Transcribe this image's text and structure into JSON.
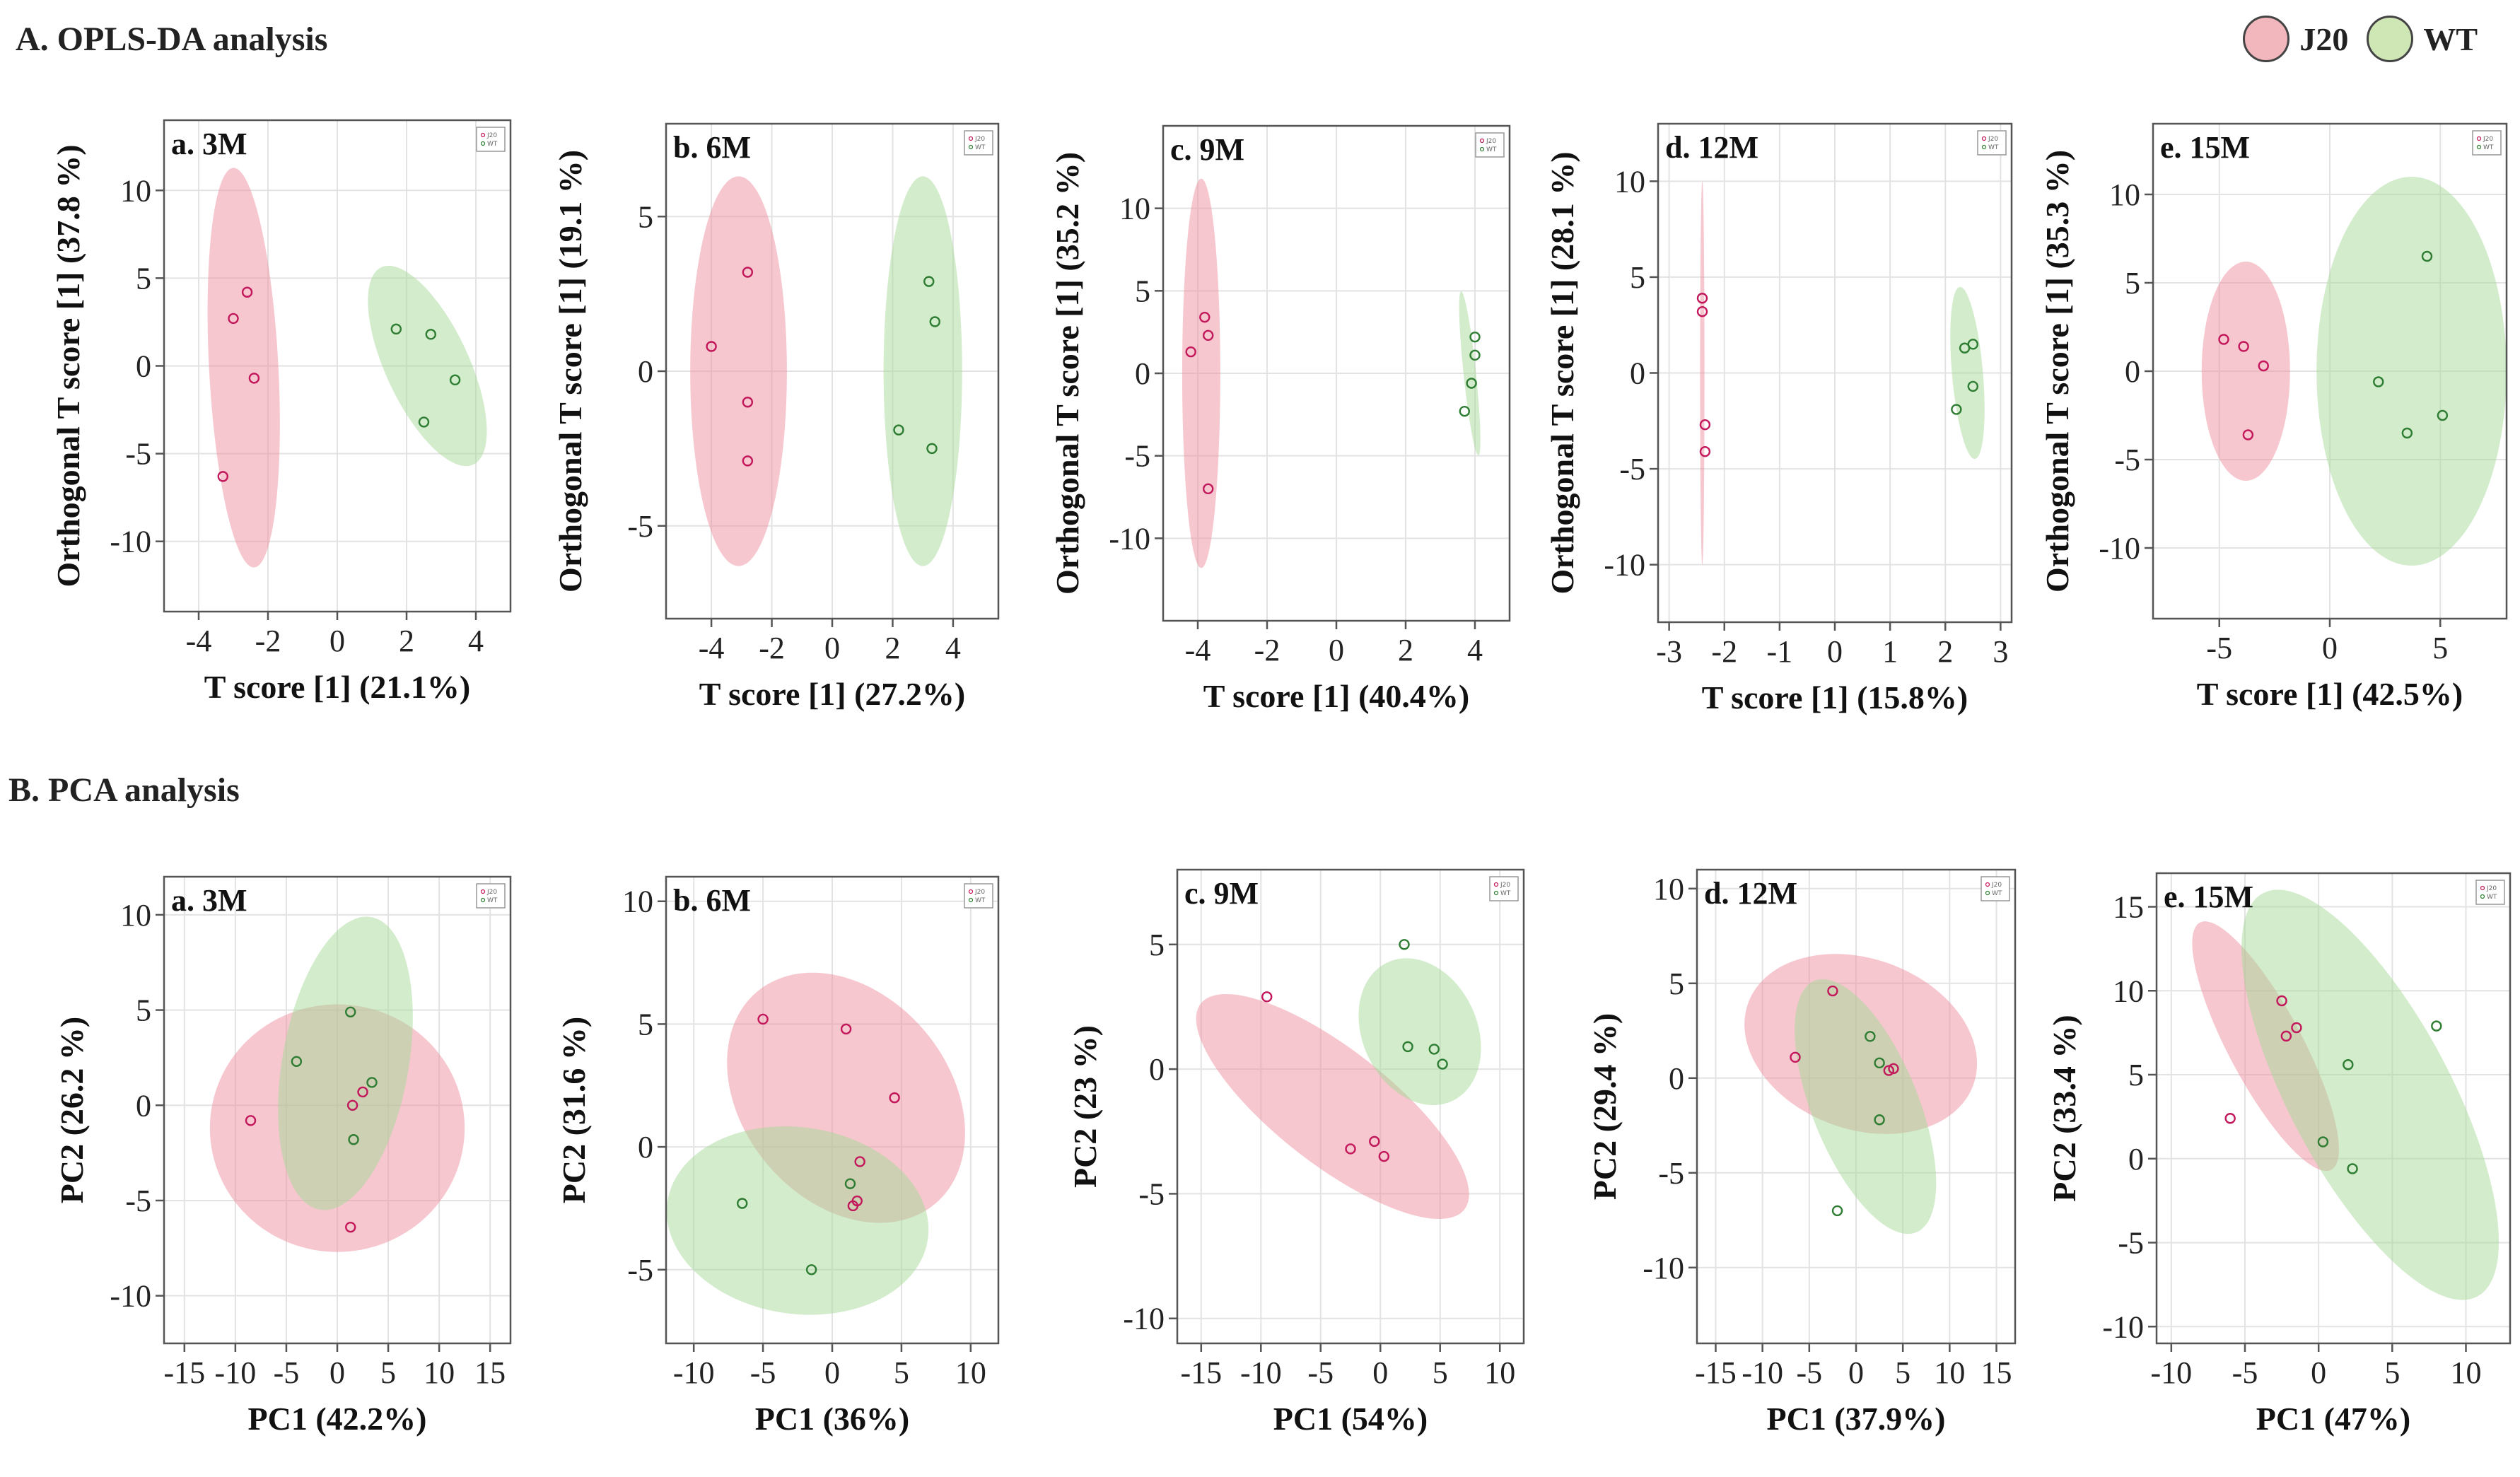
{
  "sections": {
    "a_title": "A. OPLS-DA analysis",
    "b_title": "B. PCA analysis"
  },
  "legend": {
    "items": [
      {
        "label": "J20",
        "color": "#f2b6bd"
      },
      {
        "label": "WT",
        "color": "#cfe6b5"
      }
    ]
  },
  "colors": {
    "j20_fill": "#f08fa0",
    "wt_fill": "#a5d99a",
    "j20_dot": "#c2185b",
    "wt_dot": "#2e7d32",
    "axis": "#555555",
    "grid": "#e3e3e3"
  },
  "inset_legend": [
    "J20",
    "WT"
  ],
  "chart_data": [
    {
      "type": "scatter",
      "row": "A",
      "title": "a. 3M",
      "xlabel": "T score [1] (21.1%)",
      "ylabel": "Orthogonal T score [1] (37.8 %)",
      "xlim": [
        -5,
        5
      ],
      "ylim": [
        -14,
        14
      ],
      "xticks": [
        -4,
        -2,
        0,
        2,
        4
      ],
      "yticks": [
        10,
        5,
        0,
        -5,
        -10
      ],
      "series": [
        {
          "name": "J20",
          "x": [
            -2.6,
            -3.0,
            -2.4,
            -3.3
          ],
          "y": [
            4.2,
            2.7,
            -0.7,
            -6.3
          ],
          "ellipse": {
            "cx": -2.7,
            "cy": -0.1,
            "rx": 1.0,
            "ry": 11.4,
            "angle": 3
          }
        },
        {
          "name": "WT",
          "x": [
            1.7,
            2.7,
            3.4,
            2.5
          ],
          "y": [
            2.1,
            1.8,
            -0.8,
            -3.2
          ],
          "ellipse": {
            "cx": 2.6,
            "cy": 0.0,
            "rx": 1.2,
            "ry": 6.2,
            "angle": 25
          }
        }
      ]
    },
    {
      "type": "scatter",
      "row": "A",
      "title": "b. 6M",
      "xlabel": "T score [1] (27.2%)",
      "ylabel": "Orthogonal T score [1] (19.1 %)",
      "xlim": [
        -5.5,
        5.5
      ],
      "ylim": [
        -8,
        8
      ],
      "xticks": [
        -4,
        -2,
        0,
        2,
        4
      ],
      "yticks": [
        5,
        0,
        -5
      ],
      "series": [
        {
          "name": "J20",
          "x": [
            -4.0,
            -2.8,
            -2.8,
            -2.8
          ],
          "y": [
            0.8,
            3.2,
            -1.0,
            -2.9
          ],
          "ellipse": {
            "cx": -3.1,
            "cy": 0.0,
            "rx": 1.6,
            "ry": 6.3,
            "angle": 0
          }
        },
        {
          "name": "WT",
          "x": [
            3.2,
            3.4,
            2.2,
            3.3
          ],
          "y": [
            2.9,
            1.6,
            -1.9,
            -2.5
          ],
          "ellipse": {
            "cx": 3.0,
            "cy": 0.0,
            "rx": 1.3,
            "ry": 6.3,
            "angle": 0
          }
        }
      ]
    },
    {
      "type": "scatter",
      "row": "A",
      "title": "c. 9M",
      "xlabel": "T score [1] (40.4%)",
      "ylabel": "Orthogonal T score [1] (35.2 %)",
      "xlim": [
        -5,
        5
      ],
      "ylim": [
        -15,
        15
      ],
      "xticks": [
        -4,
        -2,
        0,
        2,
        4
      ],
      "yticks": [
        10,
        5,
        0,
        -5,
        -10
      ],
      "series": [
        {
          "name": "J20",
          "x": [
            -3.8,
            -3.7,
            -4.2,
            -3.7
          ],
          "y": [
            3.4,
            2.3,
            1.3,
            -7.0
          ],
          "ellipse": {
            "cx": -3.9,
            "cy": 0.0,
            "rx": 0.55,
            "ry": 11.8,
            "angle": 0
          }
        },
        {
          "name": "WT",
          "x": [
            4.0,
            4.0,
            3.9,
            3.7
          ],
          "y": [
            2.2,
            1.1,
            -0.6,
            -2.3
          ],
          "ellipse": {
            "cx": 3.85,
            "cy": 0.0,
            "rx": 0.18,
            "ry": 5.0,
            "angle": 6
          }
        }
      ]
    },
    {
      "type": "scatter",
      "row": "A",
      "title": "d. 12M",
      "xlabel": "T score [1] (15.8%)",
      "ylabel": "Orthogonal T score [1] (28.1 %)",
      "xlim": [
        -3.2,
        3.2
      ],
      "ylim": [
        -13,
        13
      ],
      "xticks": [
        -3,
        -2,
        -1,
        0,
        1,
        2,
        3
      ],
      "yticks": [
        10,
        5,
        0,
        -5,
        -10
      ],
      "series": [
        {
          "name": "J20",
          "x": [
            -2.4,
            -2.4,
            -2.35,
            -2.35
          ],
          "y": [
            3.9,
            3.2,
            -2.7,
            -4.1
          ],
          "ellipse": {
            "cx": -2.4,
            "cy": 0.0,
            "rx": 0.04,
            "ry": 10.0,
            "angle": 0
          }
        },
        {
          "name": "WT",
          "x": [
            2.5,
            2.35,
            2.5,
            2.2
          ],
          "y": [
            1.5,
            1.3,
            -0.7,
            -1.9
          ],
          "ellipse": {
            "cx": 2.4,
            "cy": 0.0,
            "rx": 0.28,
            "ry": 4.5,
            "angle": 5
          }
        }
      ]
    },
    {
      "type": "scatter",
      "row": "A",
      "title": "e. 15M",
      "xlabel": "T score [1] (42.5%)",
      "ylabel": "Orthogonal T score [1] (35.3 %)",
      "xlim": [
        -8,
        8
      ],
      "ylim": [
        -14,
        14
      ],
      "xticks": [
        -5,
        0,
        5
      ],
      "yticks": [
        10,
        5,
        0,
        -5,
        -10
      ],
      "series": [
        {
          "name": "J20",
          "x": [
            -4.8,
            -3.9,
            -3.0,
            -3.7
          ],
          "y": [
            1.8,
            1.4,
            0.3,
            -3.6
          ],
          "ellipse": {
            "cx": -3.8,
            "cy": 0.0,
            "rx": 2.0,
            "ry": 6.2,
            "angle": 0
          }
        },
        {
          "name": "WT",
          "x": [
            4.4,
            2.2,
            5.1,
            3.5
          ],
          "y": [
            6.5,
            -0.6,
            -2.5,
            -3.5
          ],
          "ellipse": {
            "cx": 3.7,
            "cy": 0.0,
            "rx": 4.3,
            "ry": 11.0,
            "angle": 0
          }
        }
      ]
    },
    {
      "type": "scatter",
      "row": "B",
      "title": "a. 3M",
      "xlabel": "PC1 (42.2%)",
      "ylabel": "PC2 (26.2 %)",
      "xlim": [
        -17,
        17
      ],
      "ylim": [
        -12.5,
        12
      ],
      "xticks": [
        -15,
        -10,
        -5,
        0,
        5,
        10,
        15
      ],
      "yticks": [
        10,
        5,
        0,
        -5,
        -10
      ],
      "series": [
        {
          "name": "J20",
          "x": [
            -8.5,
            1.5,
            2.5,
            1.3
          ],
          "y": [
            -0.8,
            0.0,
            0.7,
            -6.4
          ],
          "ellipse": {
            "cx": 0.0,
            "cy": -1.2,
            "rx": 12.5,
            "ry": 6.5,
            "angle": 0
          }
        },
        {
          "name": "WT",
          "x": [
            1.3,
            -4.0,
            3.4,
            1.6
          ],
          "y": [
            4.9,
            2.3,
            1.2,
            -1.8
          ],
          "ellipse": {
            "cx": 0.8,
            "cy": 2.2,
            "rx": 6.2,
            "ry": 7.8,
            "angle": -10
          }
        }
      ]
    },
    {
      "type": "scatter",
      "row": "B",
      "title": "b. 6M",
      "xlabel": "PC1 (36%)",
      "ylabel": "PC2 (31.6 %)",
      "xlim": [
        -12,
        12
      ],
      "ylim": [
        -8,
        11
      ],
      "xticks": [
        -10,
        -5,
        0,
        5,
        10
      ],
      "yticks": [
        10,
        5,
        0,
        -5
      ],
      "series": [
        {
          "name": "J20",
          "x": [
            -5.0,
            1.0,
            4.5,
            2.0,
            1.8,
            1.5
          ],
          "y": [
            5.2,
            4.8,
            2.0,
            -0.6,
            -2.2,
            -2.4
          ],
          "ellipse": {
            "cx": 1.0,
            "cy": 2.0,
            "rx": 10.0,
            "ry": 4.2,
            "angle": -50
          }
        },
        {
          "name": "WT",
          "x": [
            -6.5,
            -1.5,
            1.3
          ],
          "y": [
            -2.3,
            -5.0,
            -1.5
          ],
          "ellipse": {
            "cx": -2.5,
            "cy": -3.0,
            "rx": 9.5,
            "ry": 3.8,
            "angle": -8
          }
        }
      ]
    },
    {
      "type": "scatter",
      "row": "B",
      "title": "c. 9M",
      "xlabel": "PC1 (54%)",
      "ylabel": "PC2 (23 %)",
      "xlim": [
        -17,
        12
      ],
      "ylim": [
        -11,
        8
      ],
      "xticks": [
        -15,
        -10,
        -5,
        0,
        5,
        10
      ],
      "yticks": [
        5,
        0,
        -5,
        -10
      ],
      "series": [
        {
          "name": "J20",
          "x": [
            -9.5,
            -2.5,
            -0.5,
            0.3
          ],
          "y": [
            2.9,
            -3.2,
            -2.9,
            -3.5
          ],
          "ellipse": {
            "cx": -4.0,
            "cy": -1.5,
            "rx": 14.0,
            "ry": 2.3,
            "angle": -38
          }
        },
        {
          "name": "WT",
          "x": [
            2.0,
            2.3,
            4.5,
            5.2
          ],
          "y": [
            5.0,
            0.9,
            0.8,
            0.2
          ],
          "ellipse": {
            "cx": 3.3,
            "cy": 1.5,
            "rx": 6.4,
            "ry": 2.3,
            "angle": -65
          }
        }
      ]
    },
    {
      "type": "scatter",
      "row": "B",
      "title": "d. 12M",
      "xlabel": "PC1 (37.9%)",
      "ylabel": "PC2 (29.4 %)",
      "xlim": [
        -17,
        17
      ],
      "ylim": [
        -14,
        11
      ],
      "xticks": [
        -15,
        -10,
        -5,
        0,
        5,
        10,
        15
      ],
      "yticks": [
        10,
        5,
        0,
        -5,
        -10
      ],
      "series": [
        {
          "name": "J20",
          "x": [
            -6.5,
            -2.5,
            3.5,
            4.0
          ],
          "y": [
            1.1,
            4.6,
            0.4,
            0.5
          ],
          "ellipse": {
            "cx": 0.5,
            "cy": 1.8,
            "rx": 12.8,
            "ry": 4.5,
            "angle": -20
          }
        },
        {
          "name": "WT",
          "x": [
            1.5,
            2.5,
            2.5,
            -2.0
          ],
          "y": [
            2.2,
            0.8,
            -2.2,
            -7.0
          ],
          "ellipse": {
            "cx": 1.0,
            "cy": -1.5,
            "rx": 14.5,
            "ry": 2.8,
            "angle": -68
          }
        }
      ]
    },
    {
      "type": "scatter",
      "row": "B",
      "title": "e. 15M",
      "xlabel": "PC1 (47%)",
      "ylabel": "PC2 (33.4 %)",
      "xlim": [
        -11,
        13
      ],
      "ylim": [
        -11,
        17
      ],
      "xticks": [
        -10,
        -5,
        0,
        5,
        10
      ],
      "yticks": [
        15,
        10,
        5,
        0,
        -5,
        -10
      ],
      "series": [
        {
          "name": "J20",
          "x": [
            -6.0,
            -2.5,
            -2.2,
            -1.5
          ],
          "y": [
            2.4,
            9.4,
            7.3,
            7.8
          ],
          "ellipse": {
            "cx": -3.6,
            "cy": 6.7,
            "rx": 9.5,
            "ry": 2.2,
            "angle": -62
          }
        },
        {
          "name": "WT",
          "x": [
            2.0,
            0.3,
            2.3,
            8.0
          ],
          "y": [
            5.6,
            1.0,
            -0.6,
            7.9
          ],
          "ellipse": {
            "cx": 3.5,
            "cy": 3.8,
            "rx": 15.5,
            "ry": 4.8,
            "angle": -62
          }
        }
      ]
    }
  ]
}
